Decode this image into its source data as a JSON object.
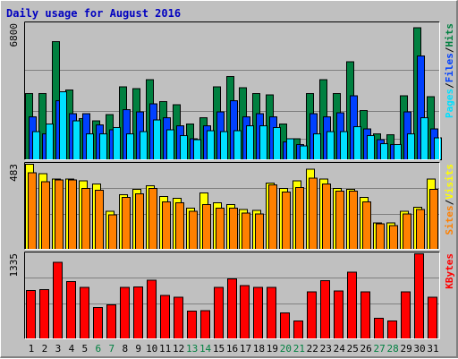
{
  "chart_data": {
    "type": "bar",
    "title": "Daily usage for August 2016",
    "days": [
      "1",
      "2",
      "3",
      "4",
      "5",
      "6",
      "7",
      "8",
      "9",
      "10",
      "11",
      "12",
      "13",
      "14",
      "15",
      "16",
      "17",
      "18",
      "19",
      "20",
      "21",
      "22",
      "23",
      "24",
      "25",
      "26",
      "27",
      "28",
      "29",
      "30",
      "31"
    ],
    "weekend_days": [
      6,
      7,
      13,
      14,
      20,
      21,
      27,
      28
    ],
    "panels": [
      {
        "name": "pages_files_hits",
        "ymax_label": "6800",
        "ylim": [
          0,
          6800
        ],
        "legend": [
          "Pages",
          "/",
          "Files",
          "/",
          "Hits"
        ],
        "legend_colors": [
          "#00e0ff",
          "#000000",
          "#0040ff",
          "#000000",
          "#008040"
        ],
        "series": [
          {
            "name": "Hits",
            "color": "#008040",
            "values": [
              3300,
              3300,
              5900,
              3500,
              2050,
              1950,
              2250,
              3650,
              3550,
              4000,
              2900,
              2750,
              1800,
              2100,
              3650,
              4150,
              3600,
              3300,
              3250,
              1800,
              1050,
              3300,
              4000,
              3300,
              4900,
              2450,
              1300,
              1250,
              3200,
              6600,
              3150
            ]
          },
          {
            "name": "Files",
            "color": "#0040ff",
            "values": [
              2150,
              1300,
              2950,
              2300,
              2300,
              1750,
              1500,
              2500,
              2400,
              2800,
              2100,
              1700,
              1050,
              1700,
              2400,
              2950,
              2150,
              2300,
              2150,
              900,
              750,
              2300,
              2150,
              2350,
              3200,
              1550,
              1000,
              750,
              2400,
              5200,
              1550
            ]
          },
          {
            "name": "Pages",
            "color": "#00e0ff",
            "values": [
              1400,
              1800,
              3400,
              1950,
              1300,
              1300,
              1600,
              1300,
              1400,
              2000,
              1500,
              1200,
              1000,
              1450,
              1400,
              1450,
              1700,
              1700,
              1600,
              1050,
              700,
              1300,
              1400,
              1400,
              1650,
              1200,
              800,
              750,
              1300,
              2100,
              1100
            ]
          }
        ]
      },
      {
        "name": "visits_sites",
        "ymax_label": "483",
        "ylim": [
          0,
          483
        ],
        "legend": [
          "Sites",
          "/",
          "Visits"
        ],
        "legend_colors": [
          "#ff8000",
          "#000000",
          "#ffff00"
        ],
        "series": [
          {
            "name": "Visits",
            "color": "#ffff00",
            "values": [
              483,
              430,
              400,
              400,
              390,
              370,
              215,
              310,
              340,
              360,
              300,
              290,
              235,
              320,
              265,
              255,
              225,
              220,
              375,
              345,
              390,
              455,
              400,
              345,
              340,
              295,
              150,
              150,
              215,
              240,
              400
            ]
          },
          {
            "name": "Sites",
            "color": "#ff8000",
            "values": [
              435,
              385,
              395,
              395,
              345,
              335,
              195,
              295,
              315,
              345,
              270,
              265,
              215,
              255,
              235,
              235,
              205,
              200,
              365,
              325,
              350,
              405,
              370,
              330,
              330,
              270,
              145,
              135,
              200,
              225,
              340
            ]
          }
        ]
      },
      {
        "name": "kbytes",
        "ymax_label": "1335",
        "ylim": [
          0,
          1335
        ],
        "legend": [
          "KBytes"
        ],
        "legend_colors": [
          "#ff0000"
        ],
        "series": [
          {
            "name": "KBytes",
            "color": "#ff0000",
            "values": [
              760,
              770,
              1200,
              900,
              805,
              495,
              535,
              810,
              815,
              920,
              685,
              655,
              435,
              440,
              810,
              940,
              835,
              810,
              805,
              410,
              280,
              740,
              910,
              750,
              1045,
              735,
              325,
              280,
              740,
              1335,
              650
            ]
          }
        ]
      }
    ]
  }
}
